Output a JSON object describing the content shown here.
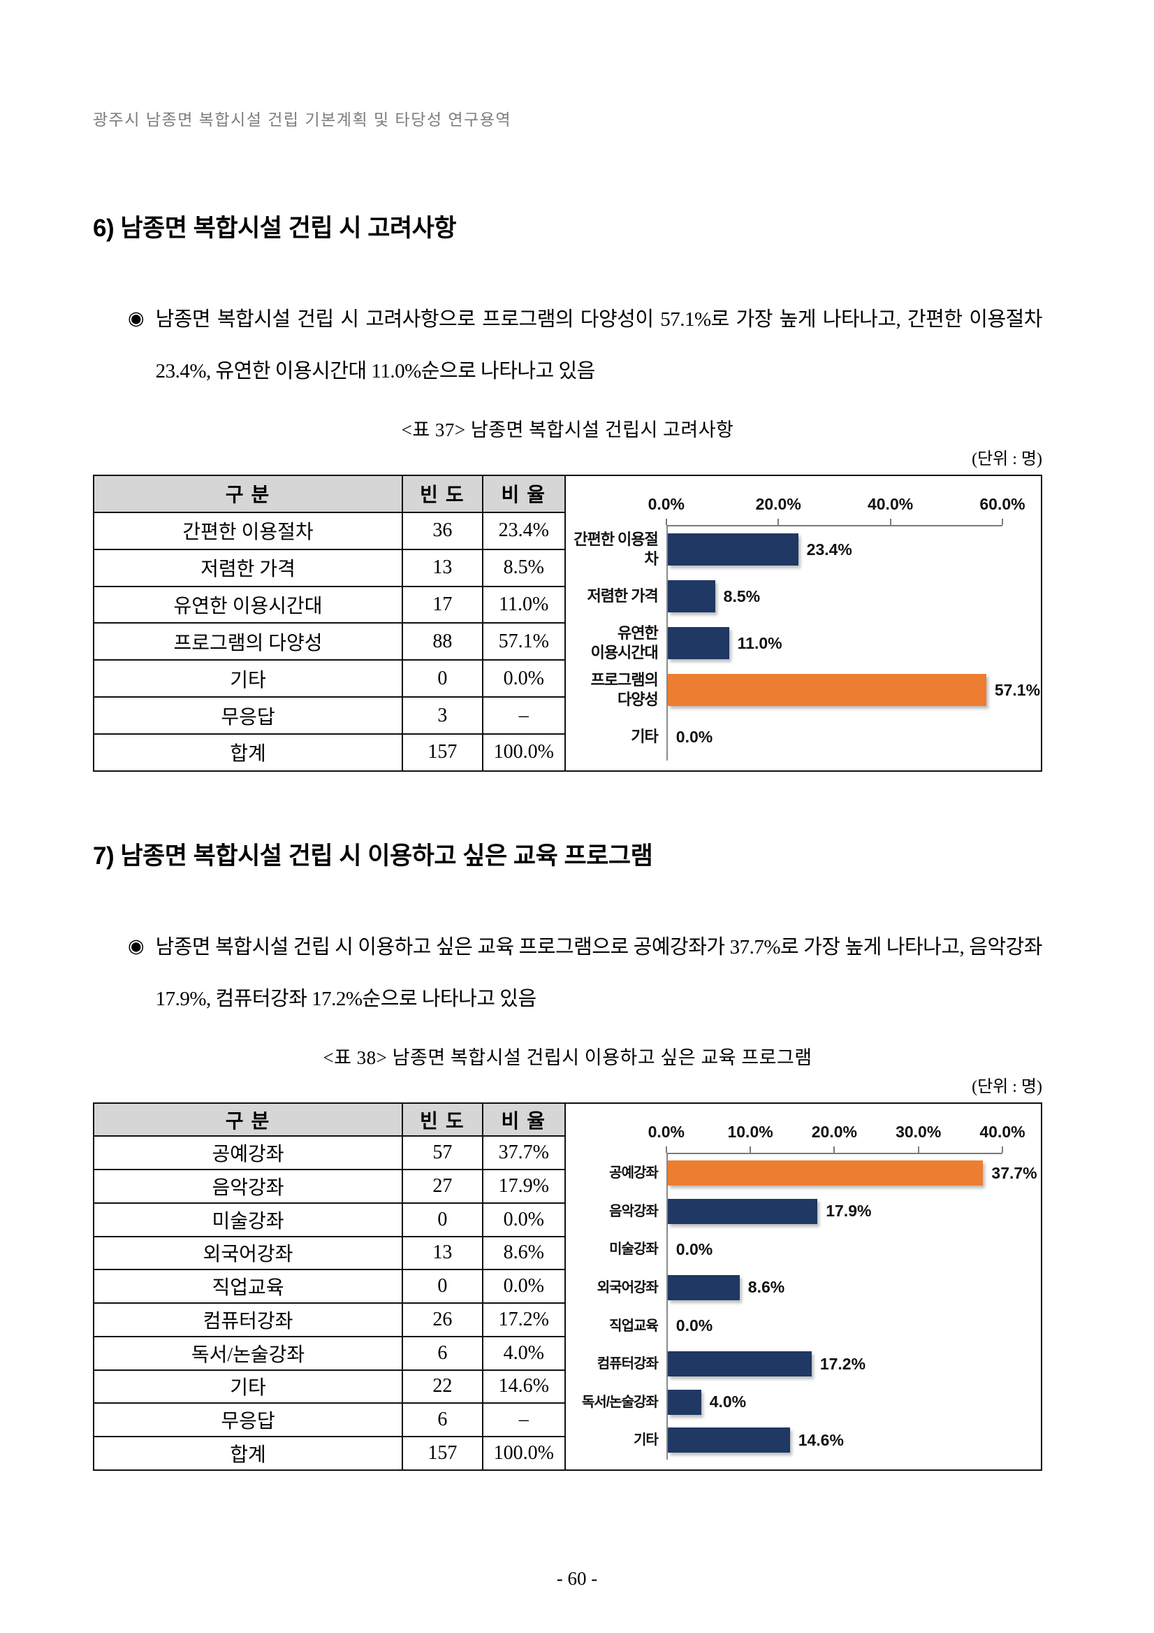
{
  "page": {
    "header": "광주시 남종면 복합시설 건립 기본계획 및 타당성 연구용역",
    "page_number": "- 60 -"
  },
  "section6": {
    "heading": "6) 남종면 복합시설 건립 시 고려사항",
    "bullet": "◉",
    "paragraph": "남종면 복합시설 건립 시 고려사항으로 프로그램의 다양성이 57.1%로 가장 높게 나타나고, 간편한 이용절차 23.4%, 유연한 이용시간대 11.0%순으로 나타나고 있음",
    "table_caption": "<표 37> 남종면 복합시설 건립시 고려사항",
    "unit_label": "(단위 : 명)"
  },
  "section7": {
    "heading": "7) 남종면 복합시설 건립 시 이용하고 싶은 교육 프로그램",
    "bullet": "◉",
    "paragraph": "남종면 복합시설 건립 시 이용하고 싶은 교육 프로그램으로 공예강좌가 37.7%로 가장 높게 나타나고, 음악강좌 17.9%, 컴퓨터강좌 17.2%순으로 나타나고 있음",
    "table_caption": "<표 38> 남종면 복합시설 건립시 이용하고 싶은 교육 프로그램",
    "unit_label": "(단위 : 명)"
  },
  "tables": {
    "table37": {
      "headers": [
        "구 분",
        "빈 도",
        "비 율"
      ],
      "rows": [
        [
          "간편한 이용절차",
          "36",
          "23.4%"
        ],
        [
          "저렴한 가격",
          "13",
          "8.5%"
        ],
        [
          "유연한 이용시간대",
          "17",
          "11.0%"
        ],
        [
          "프로그램의 다양성",
          "88",
          "57.1%"
        ],
        [
          "기타",
          "0",
          "0.0%"
        ],
        [
          "무응답",
          "3",
          "–"
        ],
        [
          "합계",
          "157",
          "100.0%"
        ]
      ]
    },
    "table38": {
      "headers": [
        "구 분",
        "빈 도",
        "비 율"
      ],
      "rows": [
        [
          "공예강좌",
          "57",
          "37.7%"
        ],
        [
          "음악강좌",
          "27",
          "17.9%"
        ],
        [
          "미술강좌",
          "0",
          "0.0%"
        ],
        [
          "외국어강좌",
          "13",
          "8.6%"
        ],
        [
          "직업교육",
          "0",
          "0.0%"
        ],
        [
          "컴퓨터강좌",
          "26",
          "17.2%"
        ],
        [
          "독서/논술강좌",
          "6",
          "4.0%"
        ],
        [
          "기타",
          "22",
          "14.6%"
        ],
        [
          "무응답",
          "6",
          "–"
        ],
        [
          "합계",
          "157",
          "100.0%"
        ]
      ]
    }
  },
  "chart_data": [
    {
      "id": "chart37",
      "type": "bar",
      "orientation": "horizontal",
      "title": "남종면 복합시설 건립시 고려사항",
      "categories": [
        "간편한 이용절차",
        "저렴한 가격",
        "유연한\n이용시간대",
        "프로그램의\n다양성",
        "기타"
      ],
      "values": [
        23.4,
        8.5,
        11.0,
        57.1,
        0.0
      ],
      "value_labels": [
        "23.4%",
        "8.5%",
        "11.0%",
        "57.1%",
        "0.0%"
      ],
      "highlight_index": 3,
      "axis_max": 60,
      "ticks": [
        "0.0%",
        "20.0%",
        "40.0%",
        "60.0%"
      ],
      "bar_color": "#1F3864",
      "highlight_color": "#ED7D31",
      "grid": false,
      "legend": false
    },
    {
      "id": "chart38",
      "type": "bar",
      "orientation": "horizontal",
      "title": "남종면 복합시설 건립시 이용하고 싶은 교육 프로그램",
      "categories": [
        "공예강좌",
        "음악강좌",
        "미술강좌",
        "외국어강좌",
        "직업교육",
        "컴퓨터강좌",
        "독서/논술강좌",
        "기타"
      ],
      "values": [
        37.7,
        17.9,
        0.0,
        8.6,
        0.0,
        17.2,
        4.0,
        14.6
      ],
      "value_labels": [
        "37.7%",
        "17.9%",
        "0.0%",
        "8.6%",
        "0.0%",
        "17.2%",
        "4.0%",
        "14.6%"
      ],
      "highlight_index": 0,
      "axis_max": 40,
      "ticks": [
        "0.0%",
        "10.0%",
        "20.0%",
        "30.0%",
        "40.0%"
      ],
      "bar_color": "#1F3864",
      "highlight_color": "#ED7D31",
      "grid": false,
      "legend": false
    }
  ]
}
